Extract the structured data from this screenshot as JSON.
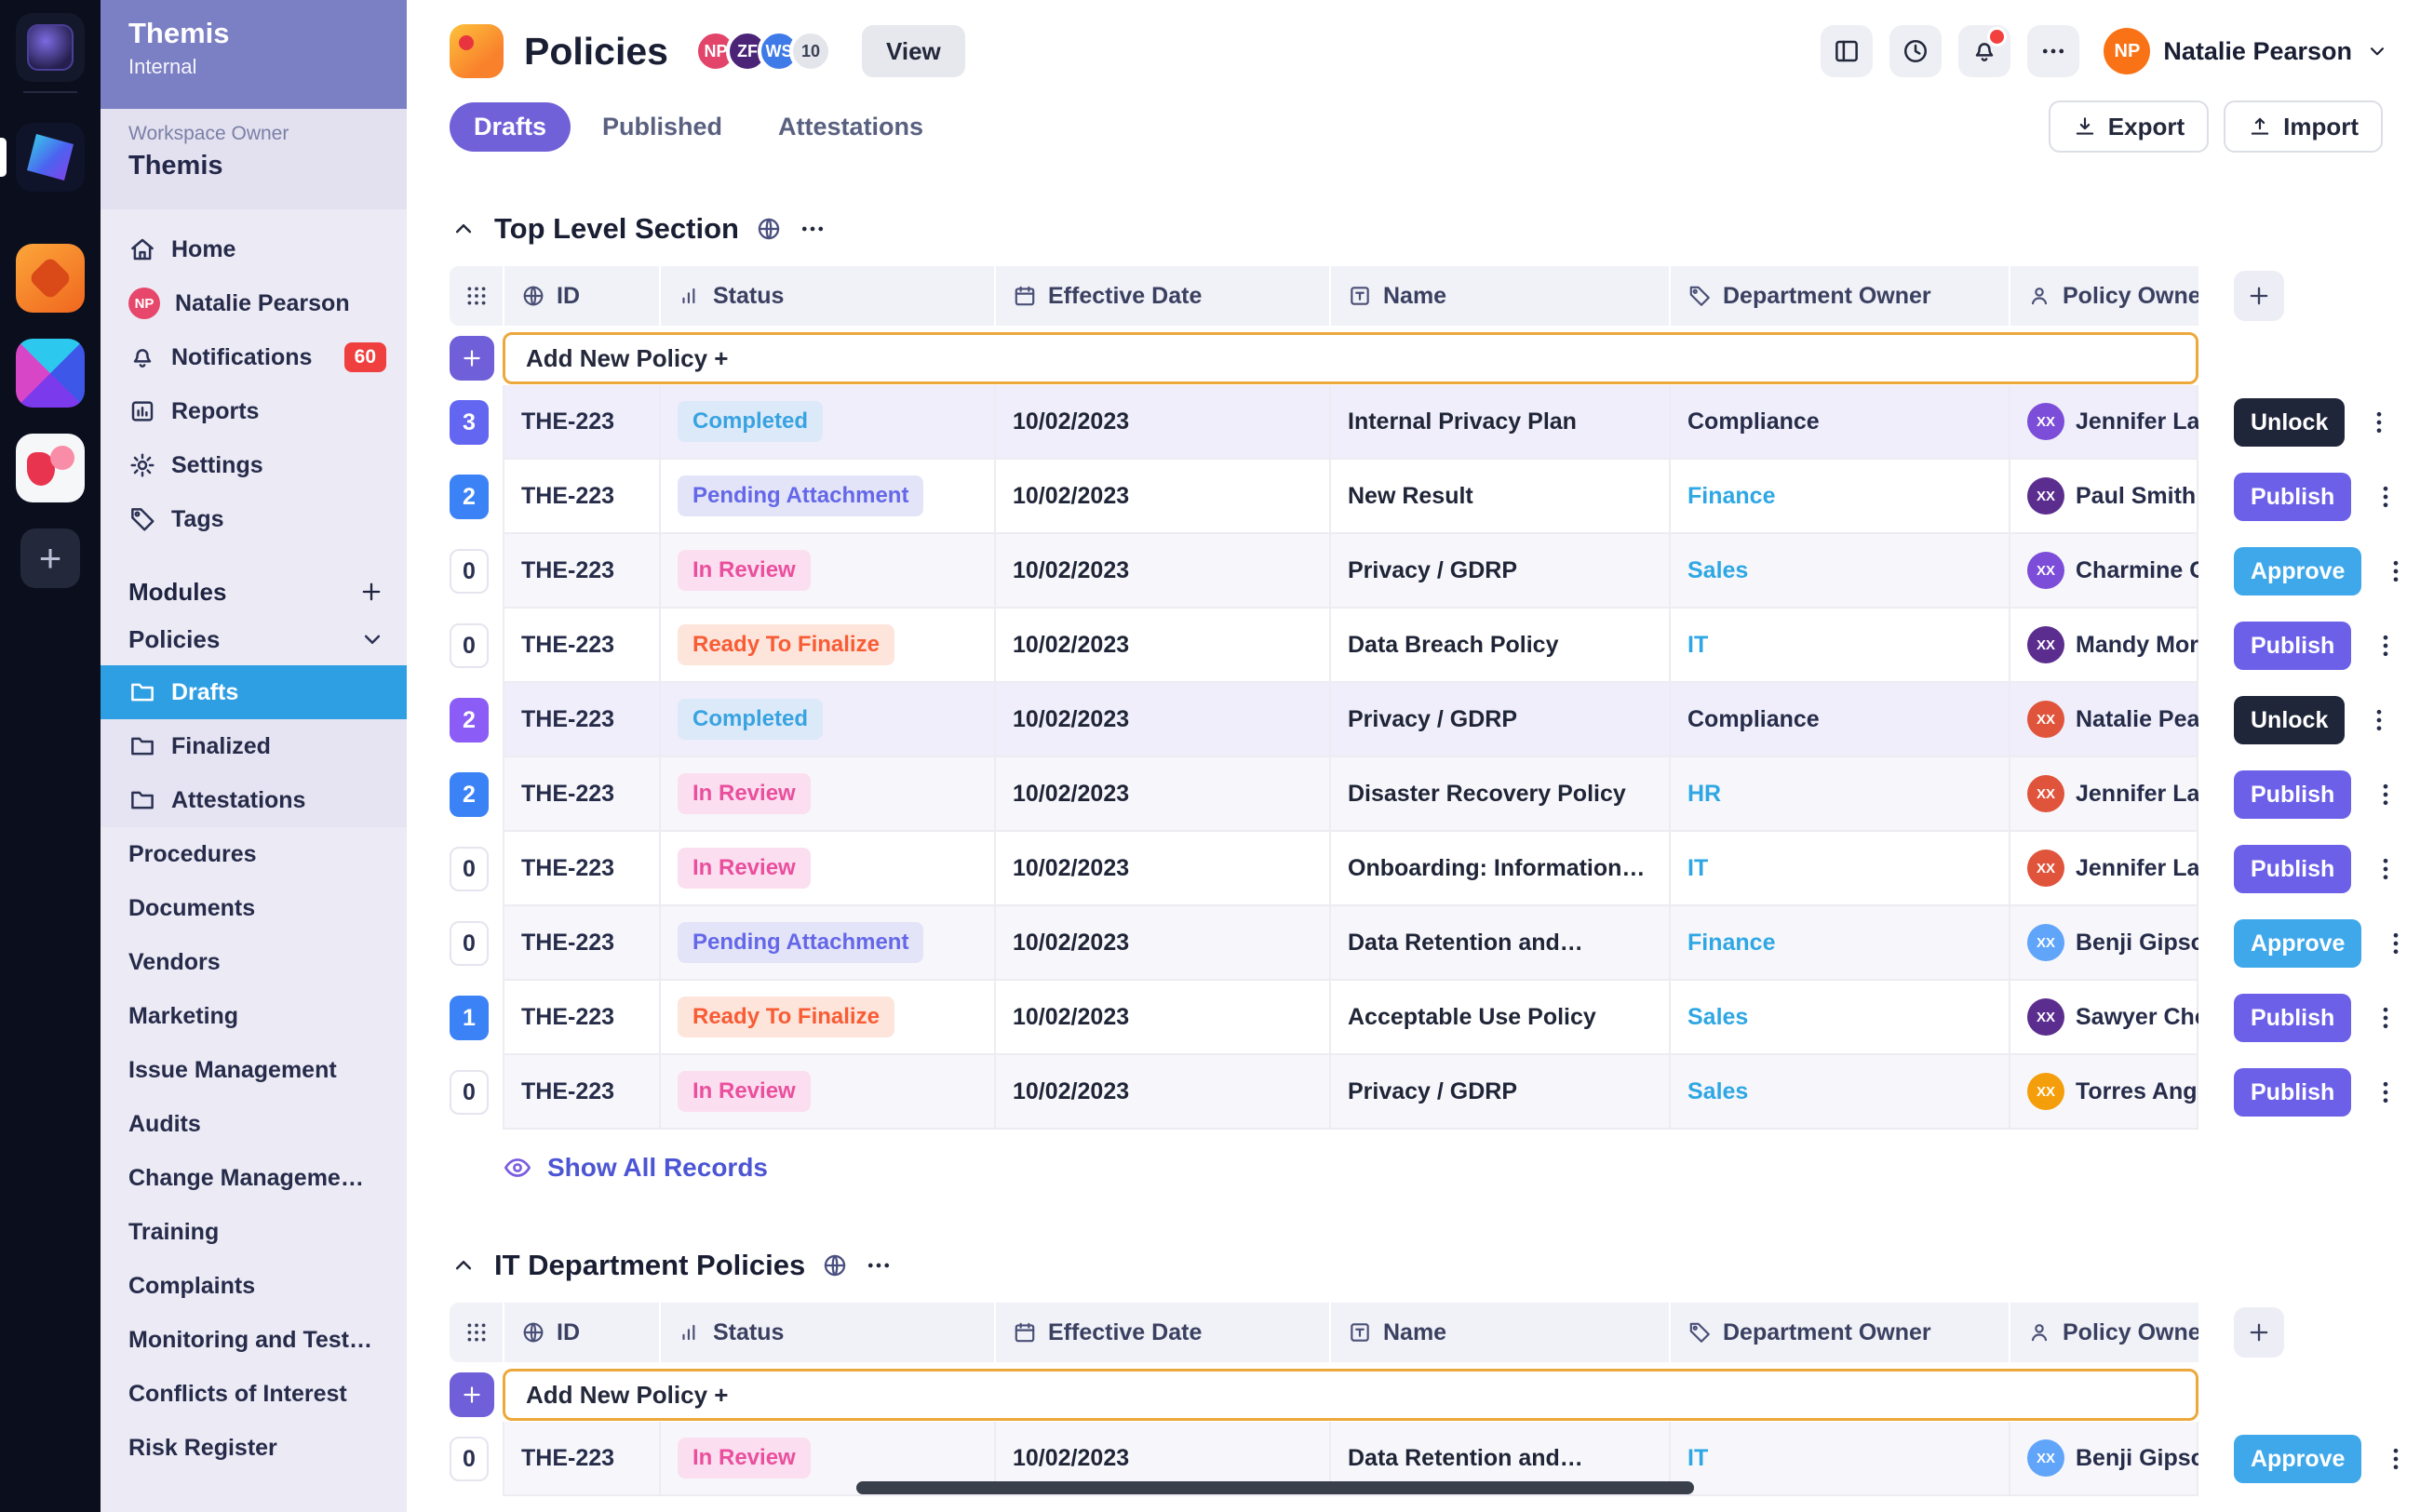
{
  "rail": {
    "add_button": "+"
  },
  "sidebar": {
    "app_name": "Themis",
    "app_sub": "Internal",
    "owner_label": "Workspace Owner",
    "owner_name": "Themis",
    "nav": [
      {
        "label": "Home",
        "icon": "home"
      },
      {
        "label": "Natalie Pearson",
        "icon": "avatar",
        "avatar_initials": "NP",
        "avatar_color": "#E6476B"
      },
      {
        "label": "Notifications",
        "icon": "bell",
        "badge": "60"
      },
      {
        "label": "Reports",
        "icon": "report"
      },
      {
        "label": "Settings",
        "icon": "gear"
      },
      {
        "label": "Tags",
        "icon": "tag"
      }
    ],
    "modules_label": "Modules",
    "policies": {
      "label": "Policies",
      "children": [
        {
          "label": "Drafts",
          "icon": "folder",
          "active": true
        },
        {
          "label": "Finalized",
          "icon": "folder",
          "active": false
        },
        {
          "label": "Attestations",
          "icon": "folder",
          "active": false
        }
      ]
    },
    "modules": [
      "Procedures",
      "Documents",
      "Vendors",
      "Marketing",
      "Issue Management",
      "Audits",
      "Change Manageme…",
      "Training",
      "Complaints",
      "Monitoring and Test…",
      "Conflicts of Interest",
      "Risk Register"
    ]
  },
  "topbar": {
    "title": "Policies",
    "avatars": [
      {
        "initials": "NP",
        "color": "#E2446A"
      },
      {
        "initials": "ZF",
        "color": "#4B2478"
      },
      {
        "initials": "WS",
        "color": "#3E7BE8"
      }
    ],
    "overflow_count": "10",
    "view_button": "View",
    "user_initials": "NP",
    "user_name": "Natalie Pearson"
  },
  "tabs": [
    {
      "label": "Drafts",
      "active": true
    },
    {
      "label": "Published",
      "active": false
    },
    {
      "label": "Attestations",
      "active": false
    }
  ],
  "actions_toolbar": {
    "export_label": "Export",
    "import_label": "Import"
  },
  "colors": {
    "link": "#2EA7E4",
    "dark_text": "#262C49"
  },
  "table": {
    "columns": [
      {
        "label": "ID",
        "icon": "globe"
      },
      {
        "label": "Status",
        "icon": "bars"
      },
      {
        "label": "Effective Date",
        "icon": "calendar"
      },
      {
        "label": "Name",
        "icon": "text"
      },
      {
        "label": "Department Owner",
        "icon": "tag"
      },
      {
        "label": "Policy Owner",
        "icon": "person"
      }
    ],
    "add_row_label": "Add New Policy +",
    "show_all_label": "Show All Records"
  },
  "status_styles": {
    "Completed": {
      "bg": "#DCE9F9",
      "fg": "#38A3E1"
    },
    "Pending Attachment": {
      "bg": "#E4E4F8",
      "fg": "#6468E8"
    },
    "In Review": {
      "bg": "#FBDFF0",
      "fg": "#EA4F9E"
    },
    "Ready To Finalize": {
      "bg": "#FEE5DB",
      "fg": "#F85C35"
    }
  },
  "sections": [
    {
      "title": "Top Level Section",
      "show_all": true,
      "rows": [
        {
          "count": "3",
          "count_color": "#6366F1",
          "id": "THE-223",
          "status": "Completed",
          "date": "10/02/2023",
          "name": "Internal Privacy Plan",
          "dept": "Compliance",
          "dept_link": false,
          "owner": "Jennifer La",
          "owner_initials": "XX",
          "owner_color": "#7C4DD8",
          "action": "Unlock",
          "row_bg": "lavender"
        },
        {
          "count": "2",
          "count_color": "#3B82F6",
          "id": "THE-223",
          "status": "Pending Attachment",
          "date": "10/02/2023",
          "name": "New Result",
          "dept": "Finance",
          "dept_link": true,
          "owner": "Paul Smith",
          "owner_initials": "XX",
          "owner_color": "#5B2D8E",
          "action": "Publish",
          "row_bg": "white"
        },
        {
          "count": "0",
          "count_color": "",
          "id": "THE-223",
          "status": "In Review",
          "date": "10/02/2023",
          "name": "Privacy / GDRP",
          "dept": "Sales",
          "dept_link": true,
          "owner": "Charmine C",
          "owner_initials": "XX",
          "owner_color": "#7C4DD8",
          "action": "Approve",
          "row_bg": "alt"
        },
        {
          "count": "0",
          "count_color": "",
          "id": "THE-223",
          "status": "Ready To Finalize",
          "date": "10/02/2023",
          "name": "Data Breach Policy",
          "dept": "IT",
          "dept_link": true,
          "owner": "Mandy Mor",
          "owner_initials": "XX",
          "owner_color": "#5B2D8E",
          "action": "Publish",
          "row_bg": "white"
        },
        {
          "count": "2",
          "count_color": "#8B5CF6",
          "id": "THE-223",
          "status": "Completed",
          "date": "10/02/2023",
          "name": "Privacy / GDRP",
          "dept": "Compliance",
          "dept_link": false,
          "owner": "Natalie Pea",
          "owner_initials": "XX",
          "owner_color": "#E0543C",
          "action": "Unlock",
          "row_bg": "lavender"
        },
        {
          "count": "2",
          "count_color": "#3B82F6",
          "id": "THE-223",
          "status": "In Review",
          "date": "10/02/2023",
          "name": "Disaster Recovery Policy",
          "dept": "HR",
          "dept_link": true,
          "owner": "Jennifer La",
          "owner_initials": "XX",
          "owner_color": "#E0543C",
          "action": "Publish",
          "row_bg": "alt"
        },
        {
          "count": "0",
          "count_color": "",
          "id": "THE-223",
          "status": "In Review",
          "date": "10/02/2023",
          "name": "Onboarding: Information…",
          "dept": "IT",
          "dept_link": true,
          "owner": "Jennifer La",
          "owner_initials": "XX",
          "owner_color": "#E0543C",
          "action": "Publish",
          "row_bg": "white"
        },
        {
          "count": "0",
          "count_color": "",
          "id": "THE-223",
          "status": "Pending Attachment",
          "date": "10/02/2023",
          "name": "Data Retention and…",
          "dept": "Finance",
          "dept_link": true,
          "owner": "Benji Gipso",
          "owner_initials": "XX",
          "owner_color": "#60A5FA",
          "action": "Approve",
          "row_bg": "alt"
        },
        {
          "count": "1",
          "count_color": "#3B82F6",
          "id": "THE-223",
          "status": "Ready To Finalize",
          "date": "10/02/2023",
          "name": "Acceptable Use Policy",
          "dept": "Sales",
          "dept_link": true,
          "owner": "Sawyer Che",
          "owner_initials": "XX",
          "owner_color": "#5B2D8E",
          "action": "Publish",
          "row_bg": "white"
        },
        {
          "count": "0",
          "count_color": "",
          "id": "THE-223",
          "status": "In Review",
          "date": "10/02/2023",
          "name": "Privacy / GDRP",
          "dept": "Sales",
          "dept_link": true,
          "owner": "Torres Ang",
          "owner_initials": "XX",
          "owner_color": "#F59E0B",
          "action": "Publish",
          "row_bg": "alt"
        }
      ]
    },
    {
      "title": "IT Department Policies",
      "show_all": false,
      "rows": [
        {
          "count": "0",
          "count_color": "",
          "id": "THE-223",
          "status": "In Review",
          "date": "10/02/2023",
          "name": "Data Retention and…",
          "dept": "IT",
          "dept_link": true,
          "owner": "Benji Gipso",
          "owner_initials": "XX",
          "owner_color": "#60A5FA",
          "action": "Approve",
          "row_bg": "alt"
        }
      ]
    }
  ]
}
